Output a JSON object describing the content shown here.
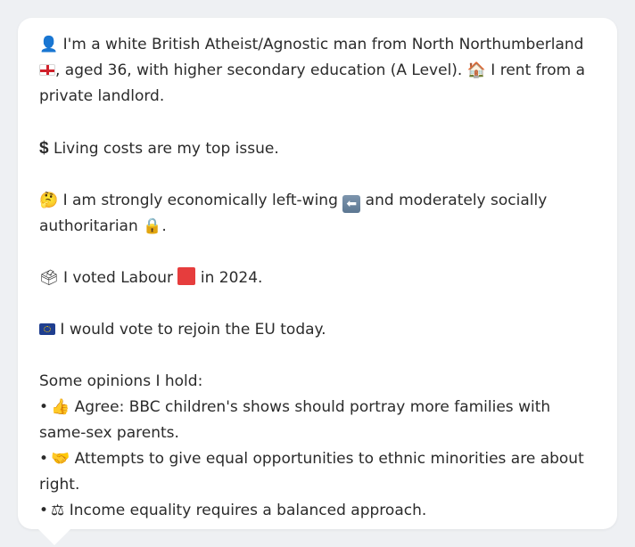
{
  "profile": {
    "line1": {
      "icon": "person-silhouette-icon",
      "icon_glyph": "👤",
      "text_a": "I'm a white British Atheist/Agnostic man from North Northumberland",
      "flag": "england-flag-icon",
      "text_b": ", aged 36, with higher secondary education (A Level).",
      "house_icon": "house-icon",
      "house_glyph": "🏠",
      "text_c": " I rent from a private landlord."
    },
    "line2": {
      "icon": "dollar-sign-icon",
      "icon_glyph": "$",
      "text": "Living costs are my top issue."
    },
    "line3": {
      "icon": "thinking-face-icon",
      "icon_glyph": "🤔",
      "text_a": "I am strongly economically left-wing",
      "arrow_icon": "left-arrow-icon",
      "arrow_glyph": "⬅",
      "text_b": " and moderately socially authoritarian",
      "lock_icon": "lock-icon",
      "lock_glyph": "🔒",
      "text_c": "."
    },
    "line4": {
      "icon": "ballot-box-icon",
      "icon_glyph": "🗳",
      "text_a": "I voted Labour",
      "square_icon": "red-square-icon",
      "text_b": " in 2024."
    },
    "line5": {
      "icon": "eu-flag-icon",
      "text": "I would vote to rejoin the EU today."
    },
    "opinions": {
      "heading": "Some opinions I hold:",
      "bullet": "•",
      "items": [
        {
          "icon": "thumbs-up-icon",
          "icon_glyph": "👍",
          "text": "Agree: BBC children's shows should portray more families with same-sex parents."
        },
        {
          "icon": "handshake-icon",
          "icon_glyph": "🤝",
          "text": "Attempts to give equal opportunities to ethnic minorities are about right."
        },
        {
          "icon": "balance-scale-icon",
          "icon_glyph": "⚖",
          "text": "Income equality requires a balanced approach."
        }
      ]
    }
  },
  "colors": {
    "background": "#eef0f3",
    "bubble": "#ffffff",
    "text": "#2b2b2b",
    "labour_red": "#e63d3d",
    "eu_blue": "#1f3e8f"
  }
}
